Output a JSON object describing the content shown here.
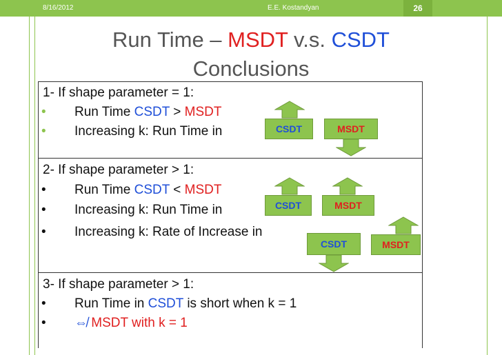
{
  "header": {
    "date": "8/16/2012",
    "author": "E.E. Kostandyan",
    "slide_number": "26"
  },
  "title": {
    "line1_prefix": "Run Time – ",
    "line1_msdt": "MSDT",
    "line1_vs": " v.s. ",
    "line1_csdt": "CSDT",
    "line2": "Conclusions"
  },
  "section1": {
    "heading": "1- If shape parameter = 1:",
    "bullet": "•",
    "item1_prefix": "Run Time ",
    "item1_csdt": "CSDT",
    "item1_op": " > ",
    "item1_msdt": "MSDT",
    "item2": "Increasing k: Run Time in",
    "tag_csdt": "CSDT",
    "tag_msdt": "MSDT"
  },
  "section2": {
    "heading": "2- If shape parameter > 1:",
    "bullet": "•",
    "item1_prefix": "Run Time ",
    "item1_csdt": "CSDT",
    "item1_op": " < ",
    "item1_msdt": "MSDT",
    "item2": "Increasing k: Run Time in",
    "item3": "Increasing k: Rate of Increase in",
    "tag_csdt": "CSDT",
    "tag_msdt": "MSDT",
    "tag2_csdt": "CSDT",
    "tag2_msdt": "MSDT"
  },
  "section3": {
    "heading": "3- If shape parameter > 1:",
    "bullet": "•",
    "item1_prefix": "Run Time in ",
    "item1_csdt": "CSDT",
    "item1_suffix": " is short when k = 1",
    "item2_symbol": "⇎",
    "item2_text": " MSDT with k  = 1"
  },
  "colors": {
    "accent_green": "#8dc44e",
    "red": "#e02020",
    "blue": "#1f4fd8"
  },
  "icons": {
    "up": "up-arrow-icon",
    "down": "down-arrow-icon"
  }
}
